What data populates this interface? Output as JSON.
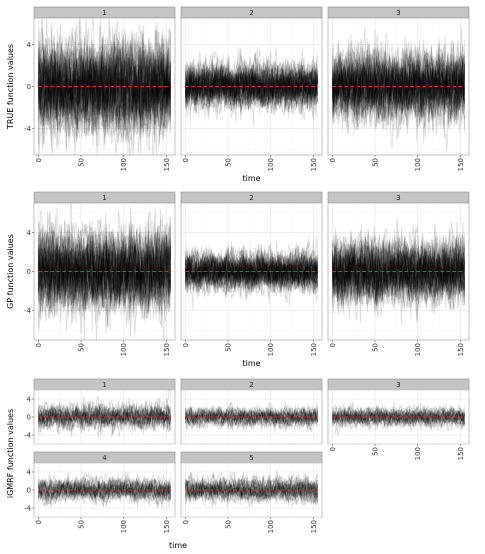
{
  "chart_data": [
    {
      "type": "line",
      "ylabel": "TRUE function values",
      "xlabel": "time",
      "xlim": [
        -5,
        160
      ],
      "ylim": [
        -6.5,
        6.5
      ],
      "xticks": [
        "0",
        "50",
        "100",
        "150"
      ],
      "yticks": [
        "-4",
        "0",
        "4"
      ],
      "grid": true,
      "legend": "none",
      "line_color": "#000000",
      "mean_color": "#cc3333",
      "panels": [
        {
          "strip": "1",
          "n_series": 60,
          "x_range": [
            0,
            155
          ],
          "spread_sd": 2.0,
          "mean": 0
        },
        {
          "strip": "2",
          "n_series": 60,
          "x_range": [
            0,
            155
          ],
          "spread_sd": 1.0,
          "mean": 0
        },
        {
          "strip": "3",
          "n_series": 60,
          "x_range": [
            0,
            155
          ],
          "spread_sd": 1.5,
          "mean": 0
        }
      ]
    },
    {
      "type": "line",
      "ylabel": "GP function values",
      "xlabel": "time",
      "xlim": [
        -5,
        160
      ],
      "ylim": [
        -7,
        7
      ],
      "xticks": [
        "0",
        "50",
        "100",
        "150"
      ],
      "yticks": [
        "-4",
        "0",
        "4"
      ],
      "grid": true,
      "legend": "none",
      "line_color": "#000000",
      "mean_color": "#cc3333",
      "panels": [
        {
          "strip": "1",
          "n_series": 60,
          "x_range": [
            0,
            155
          ],
          "spread_sd": 1.9,
          "mean": 0
        },
        {
          "strip": "2",
          "n_series": 60,
          "x_range": [
            0,
            155
          ],
          "spread_sd": 0.9,
          "mean": 0
        },
        {
          "strip": "3",
          "n_series": 60,
          "x_range": [
            0,
            155
          ],
          "spread_sd": 1.5,
          "mean": 0
        }
      ]
    },
    {
      "type": "line",
      "ylabel": "iGMRF function values",
      "xlabel": "time",
      "xlim": [
        -5,
        160
      ],
      "ylim": [
        -6,
        6
      ],
      "xticks": [
        "0",
        "50",
        "100",
        "150"
      ],
      "yticks": [
        "-4",
        "0",
        "4"
      ],
      "grid": true,
      "legend": "none",
      "line_color": "#000000",
      "mean_color": "#cc3333",
      "panels": [
        {
          "strip": "1",
          "n_series": 30,
          "x_range": [
            0,
            155
          ],
          "spread_sd": 1.3,
          "mean": 0
        },
        {
          "strip": "2",
          "n_series": 30,
          "x_range": [
            0,
            155
          ],
          "spread_sd": 1.0,
          "mean": 0
        },
        {
          "strip": "3",
          "n_series": 30,
          "x_range": [
            0,
            155
          ],
          "spread_sd": 1.0,
          "mean": 0
        },
        {
          "strip": "4",
          "n_series": 30,
          "x_range": [
            0,
            155
          ],
          "spread_sd": 1.2,
          "mean": 0
        },
        {
          "strip": "5",
          "n_series": 30,
          "x_range": [
            0,
            155
          ],
          "spread_sd": 1.3,
          "mean": 0
        }
      ]
    }
  ]
}
